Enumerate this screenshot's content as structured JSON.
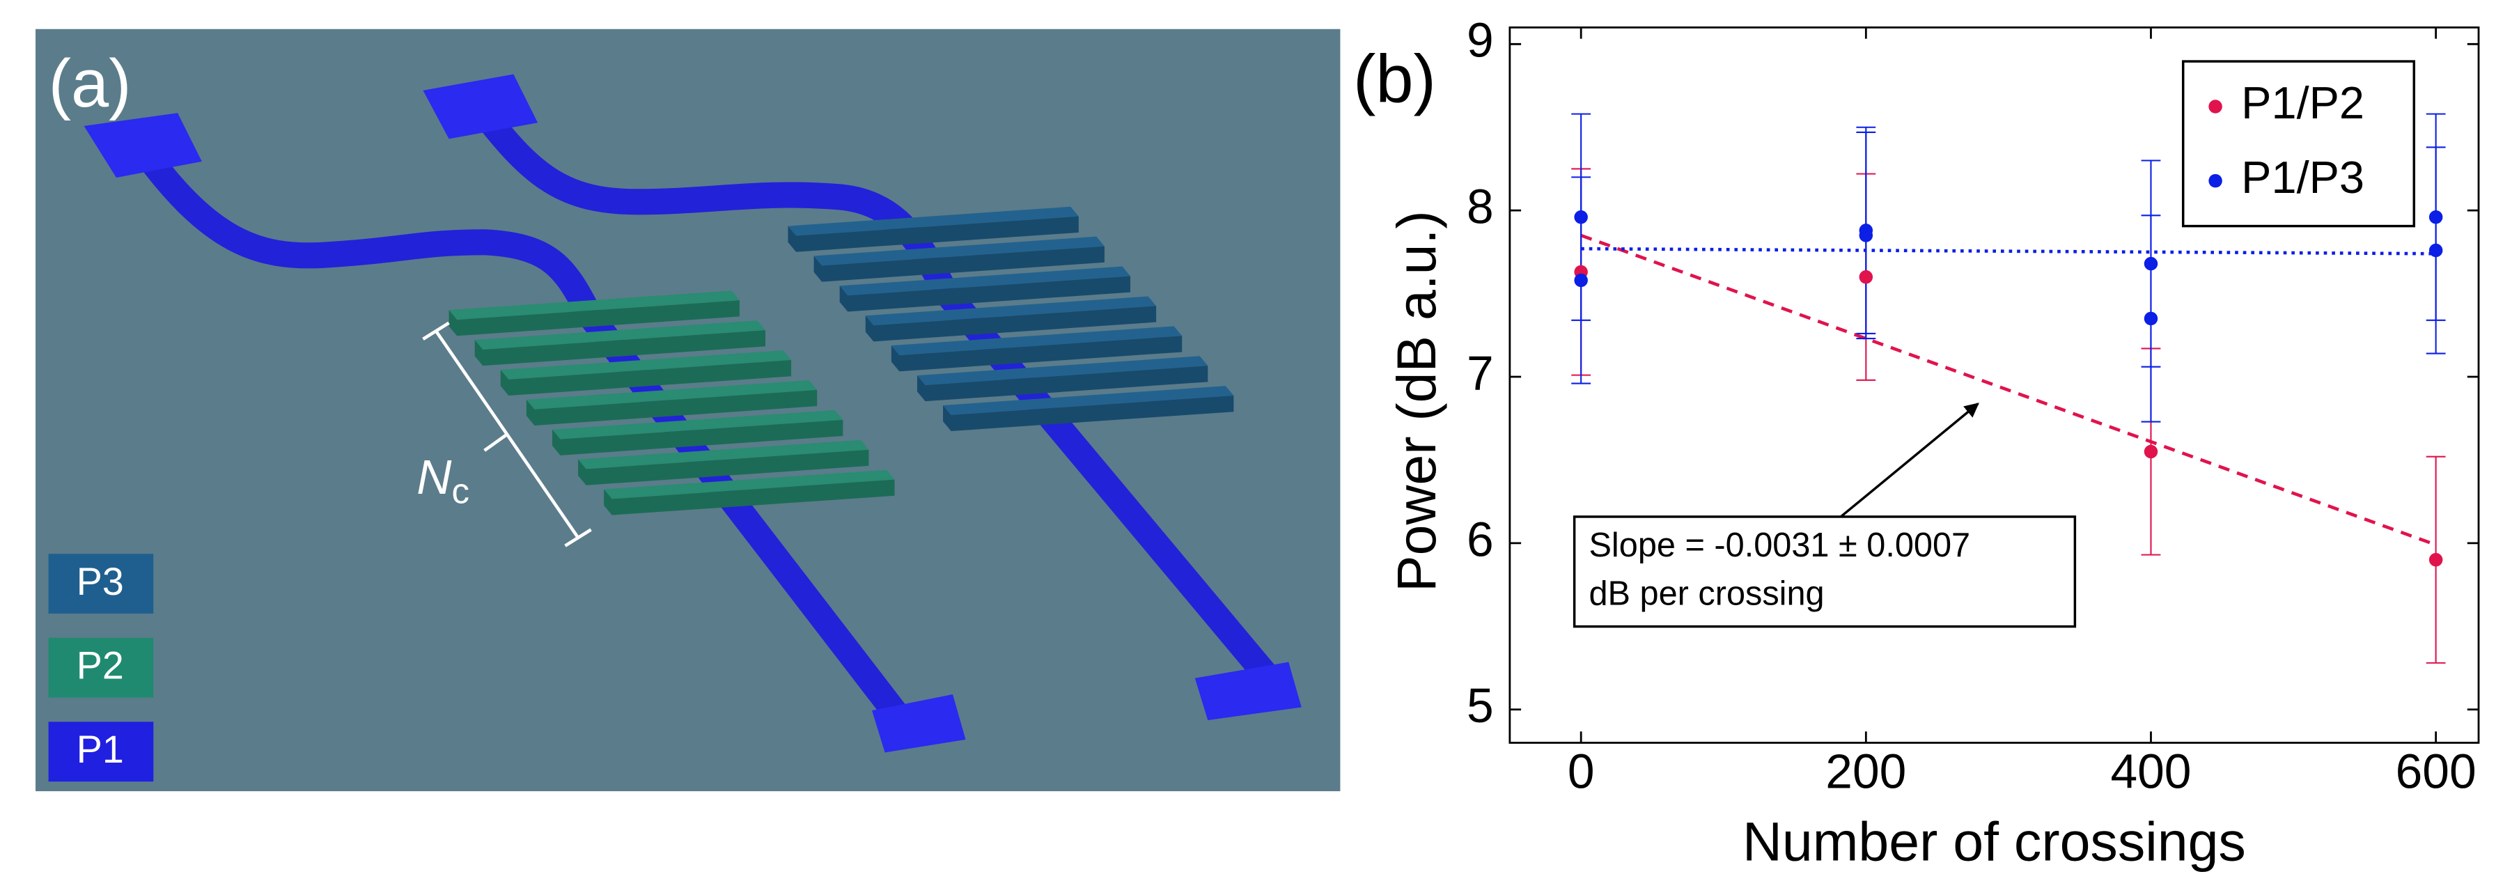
{
  "panel_a": {
    "label": "(a)",
    "bracket_label": "N",
    "bracket_subscript": "c",
    "legend": [
      "P3",
      "P2",
      "P1"
    ]
  },
  "chart_data": {
    "type": "scatter",
    "panel_label": "(b)",
    "x_label": "Number of crossings",
    "y_label": "Power (dB a.u.)",
    "xlim": [
      -50,
      630
    ],
    "ylim": [
      4.8,
      9.1
    ],
    "xticks": [
      0,
      200,
      400,
      600
    ],
    "yticks": [
      5,
      6,
      7,
      8,
      9
    ],
    "legend_position": "upper right",
    "series": [
      {
        "name": "P1/P2",
        "color": "#e0134d",
        "x": [
          0,
          200,
          400,
          600
        ],
        "values": [
          7.63,
          7.6,
          6.55,
          5.9
        ],
        "errors": [
          0.62,
          0.62,
          0.62,
          0.62
        ]
      },
      {
        "name": "P1/P3",
        "color": "#0b1fe6",
        "x": [
          0,
          0,
          200,
          200,
          400,
          400,
          600,
          600
        ],
        "values": [
          7.96,
          7.58,
          7.88,
          7.85,
          7.68,
          7.35,
          7.96,
          7.76
        ],
        "errors": [
          0.62,
          0.62,
          0.62,
          0.62,
          0.62,
          0.62,
          0.62,
          0.62
        ]
      }
    ],
    "fits": [
      {
        "color": "#e0134d",
        "style": "dashed",
        "x": [
          0,
          600
        ],
        "values": [
          7.85,
          5.99
        ]
      },
      {
        "color": "#0b1fe6",
        "style": "dotted",
        "x": [
          0,
          600
        ],
        "values": [
          7.77,
          7.74
        ]
      }
    ],
    "annotation": [
      "Slope = -0.0031 ± 0.0007",
      "dB per crossing"
    ]
  }
}
